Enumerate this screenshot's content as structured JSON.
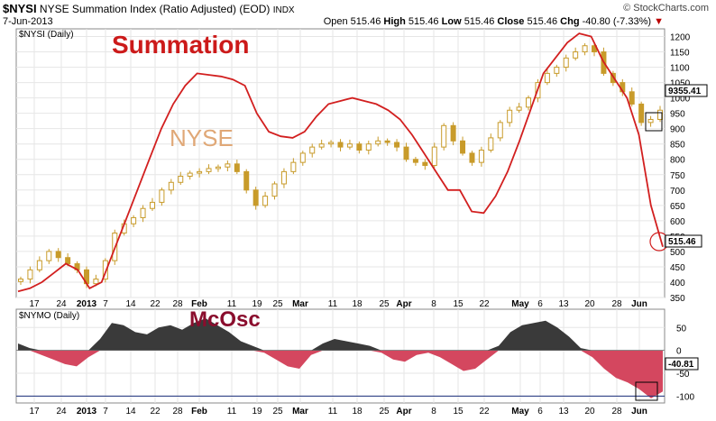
{
  "header": {
    "symbol": "$NYSI",
    "name": "NYSE Summation Index (Ratio Adjusted) (EOD)",
    "exchange": "INDX",
    "date": "7-Jun-2013",
    "brand": "© StockCharts.com",
    "open_label": "Open",
    "open": "515.46",
    "high_label": "High",
    "high": "515.46",
    "low_label": "Low",
    "low": "515.46",
    "close_label": "Close",
    "close": "515.46",
    "chg_label": "Chg",
    "chg": "-40.80 (-7.33%)",
    "down_arrow": "▼"
  },
  "colors": {
    "candle": "#c89b2a",
    "summation_line": "#d21f1f",
    "mcosc_positive": "#3a3a3a",
    "mcosc_negative": "#d4475f",
    "annotation_red": "#cc1a1a",
    "annotation_tan": "#e0a877",
    "annotation_maroon": "#8a0d2d"
  },
  "annotations": {
    "summation": "Summation",
    "nyse": "NYSE",
    "mcosc": "McOsc"
  },
  "chart_data": [
    {
      "type": "candlestick+line",
      "panel_label": "$NYSI (Daily)",
      "ylim": [
        350,
        1225
      ],
      "y_ticks": [
        350,
        400,
        450,
        500,
        550,
        600,
        650,
        700,
        750,
        800,
        850,
        900,
        950,
        1000,
        1050,
        1100,
        1150,
        1200
      ],
      "last_value_label": "515.46",
      "overlay_value_label": "9355.41",
      "x_tick_labels": [
        "17",
        "24",
        "2013",
        "7",
        "14",
        "22",
        "28",
        "Feb",
        "11",
        "19",
        "25",
        "Mar",
        "11",
        "18",
        "25",
        "Apr",
        "8",
        "15",
        "22",
        "May",
        "6",
        "13",
        "20",
        "28",
        "Jun"
      ],
      "series": [
        {
          "name": "NYSE",
          "style": "candles",
          "values": [
            410,
            440,
            470,
            500,
            480,
            460,
            440,
            395,
            410,
            470,
            560,
            590,
            610,
            640,
            660,
            700,
            725,
            745,
            755,
            760,
            770,
            775,
            785,
            760,
            700,
            650,
            680,
            720,
            760,
            790,
            820,
            840,
            850,
            855,
            840,
            850,
            830,
            850,
            860,
            855,
            840,
            800,
            790,
            780,
            840,
            910,
            860,
            820,
            790,
            830,
            870,
            920,
            960,
            970,
            1000,
            1050,
            1080,
            1100,
            1130,
            1150,
            1170,
            1150,
            1080,
            1050,
            1020,
            980,
            920,
            930,
            960
          ]
        },
        {
          "name": "Summation",
          "style": "line",
          "values": [
            370,
            380,
            400,
            430,
            460,
            440,
            380,
            400,
            500,
            600,
            700,
            800,
            900,
            980,
            1040,
            1080,
            1075,
            1070,
            1060,
            1040,
            950,
            890,
            875,
            870,
            890,
            940,
            980,
            990,
            1000,
            990,
            980,
            960,
            930,
            880,
            820,
            760,
            700,
            700,
            630,
            625,
            680,
            760,
            860,
            970,
            1080,
            1130,
            1180,
            1210,
            1200,
            1120,
            1060,
            1000,
            880,
            650,
            515
          ]
        }
      ]
    },
    {
      "type": "area",
      "panel_label": "$NYMO (Daily)",
      "ylim": [
        -115,
        90
      ],
      "y_ticks": [
        50,
        0,
        -50,
        -100
      ],
      "last_value_label": "-40.81",
      "x_tick_labels": [
        "17",
        "24",
        "2013",
        "7",
        "14",
        "22",
        "28",
        "Feb",
        "11",
        "19",
        "25",
        "Mar",
        "11",
        "18",
        "25",
        "Apr",
        "8",
        "15",
        "22",
        "May",
        "6",
        "13",
        "20",
        "28",
        "Jun"
      ],
      "series": [
        {
          "name": "McOsc",
          "values": [
            15,
            5,
            -10,
            -20,
            -30,
            -35,
            -15,
            25,
            60,
            55,
            40,
            35,
            50,
            55,
            45,
            60,
            70,
            55,
            40,
            20,
            10,
            -5,
            -20,
            -35,
            -40,
            -10,
            15,
            25,
            20,
            15,
            10,
            -5,
            -20,
            -25,
            -10,
            -5,
            -15,
            -30,
            -45,
            -40,
            -20,
            10,
            40,
            55,
            60,
            65,
            50,
            30,
            5,
            -15,
            -40,
            -60,
            -70,
            -85,
            -105,
            -90
          ]
        }
      ]
    }
  ]
}
